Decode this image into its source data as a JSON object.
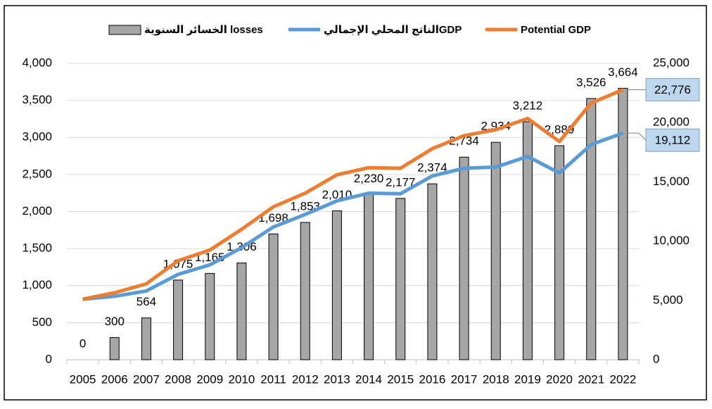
{
  "chart_data": {
    "type": "combo",
    "categories": [
      "2005",
      "2006",
      "2007",
      "2008",
      "2009",
      "2010",
      "2011",
      "2012",
      "2013",
      "2014",
      "2015",
      "2016",
      "2017",
      "2018",
      "2019",
      "2020",
      "2021",
      "2022"
    ],
    "series": [
      {
        "name": "الخسائر السنوية losses",
        "type": "bar",
        "color": "#a6a6a6",
        "values": [
          0,
          300,
          564,
          1075,
          1165,
          1306,
          1698,
          1853,
          2010,
          2230,
          2177,
          2374,
          2734,
          2934,
          3212,
          2889,
          3526,
          3664
        ],
        "value_labels": [
          "0",
          "300",
          "564",
          "1,075",
          "1,165",
          "1,306",
          "1,698",
          "1,853",
          "2,010",
          "2,230",
          "2,177",
          "2,374",
          "2,734",
          "2,934",
          "3,212",
          "2,889",
          "3,526",
          "3,664"
        ]
      },
      {
        "name": "الناتج المحلي الإجماليGDP",
        "type": "line",
        "axis": "y2",
        "color": "#5b9bd5",
        "values": [
          5100,
          5350,
          5800,
          7200,
          8000,
          9450,
          11200,
          12250,
          13400,
          14050,
          14000,
          15500,
          16150,
          16250,
          17150,
          15750,
          18150,
          19112
        ],
        "value_labels": [
          null,
          null,
          null,
          null,
          null,
          null,
          null,
          null,
          null,
          null,
          null,
          null,
          null,
          null,
          null,
          null,
          null,
          "19,112"
        ]
      },
      {
        "name": "Potential GDP",
        "type": "line",
        "axis": "y2",
        "color": "#ed7d31",
        "values": [
          5100,
          5650,
          6400,
          8350,
          9250,
          11000,
          12900,
          14050,
          15600,
          16200,
          16150,
          17800,
          18900,
          19400,
          20350,
          18400,
          21650,
          22776
        ],
        "value_labels": [
          null,
          null,
          null,
          null,
          null,
          null,
          null,
          null,
          null,
          null,
          null,
          null,
          null,
          null,
          null,
          null,
          null,
          "22,776"
        ]
      }
    ],
    "ylim": [
      0,
      4000
    ],
    "yticks": [
      0,
      500,
      {
        "value": 1000,
        "label": "1,000"
      },
      {
        "value": 1500,
        "label": "1,500"
      },
      {
        "value": 2000,
        "label": "2,000"
      },
      {
        "value": 2500,
        "label": "2,500"
      },
      {
        "value": 3000,
        "label": "3,000"
      },
      {
        "value": 3500,
        "label": "3,500"
      },
      {
        "value": 4000,
        "label": "4,000"
      }
    ],
    "y2lim": [
      0,
      25000
    ],
    "y2ticks": [
      0,
      {
        "value": 5000,
        "label": "5,000"
      },
      {
        "value": 10000,
        "label": "10,000"
      },
      {
        "value": 15000,
        "label": "15,000"
      },
      {
        "value": 20000,
        "label": "20,000"
      },
      {
        "value": 25000,
        "label": "25,000"
      }
    ],
    "grid": true,
    "legend": "top"
  }
}
